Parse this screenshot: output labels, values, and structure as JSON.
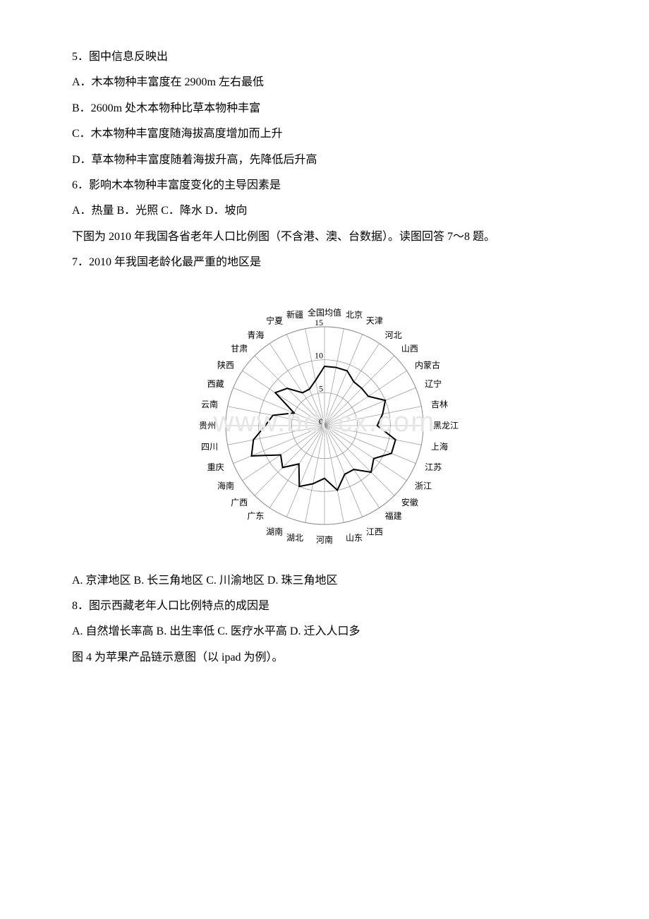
{
  "q5": {
    "stem": "5．图中信息反映出",
    "A": "A．木本物种丰富度在 2900m 左右最低",
    "B": "B．2600m 处木本物种比草本物种丰富",
    "C": "C．木本物种丰富度随海拔高度增加而上升",
    "D": "D．草本物种丰富度随着海拔升高，先降低后升高"
  },
  "q6": {
    "stem": "6．影响木本物种丰富度变化的主导因素是",
    "opts": "A．热量 B．光照 C．降水 D．坡向"
  },
  "intro7": "下图为 2010 年我国各省老年人口比例图（不含港、澳、台数据）。读图回答 7～8 题。",
  "q7": {
    "stem": "7．2010 年我国老龄化最严重的地区是",
    "opts": "A. 京津地区 B. 长三角地区 C. 川渝地区 D. 珠三角地区"
  },
  "q8": {
    "stem": "8．图示西藏老年人口比例特点的成因是",
    "opts": "A. 自然增长率高  B. 出生率低 C. 医疗水平高 D. 迁入人口多"
  },
  "fig4": "图 4 为苹果产品链示意图（以 ipad 为例）。",
  "radar": {
    "categories": [
      "全国均值",
      "北京",
      "天津",
      "河北",
      "山西",
      "内蒙古",
      "辽宁",
      "吉林",
      "黑龙江",
      "上海",
      "江苏",
      "浙江",
      "安徽",
      "福建",
      "江西",
      "山东",
      "河南",
      "湖北",
      "湖南",
      "广东",
      "广西",
      "海南",
      "重庆",
      "四川",
      "贵州",
      "云南",
      "西藏",
      "陕西",
      "甘肃",
      "青海",
      "宁夏",
      "新疆"
    ],
    "values": [
      9,
      9,
      9,
      8,
      8,
      8,
      10,
      9,
      8,
      11,
      11,
      9,
      10,
      8,
      8,
      10,
      8,
      9,
      10,
      7,
      9,
      8,
      12,
      11,
      9,
      8,
      5,
      9,
      8,
      6,
      6,
      7
    ],
    "max": 15,
    "ticks": [
      0,
      5,
      10,
      15
    ],
    "grid_color": "#888888",
    "spoke_color": "#888888",
    "line_color": "#000000",
    "line_width": 2,
    "background": "#ffffff",
    "label_fontsize": 12,
    "tick_fontsize": 12
  },
  "watermark_text": "www.bdocx.com"
}
